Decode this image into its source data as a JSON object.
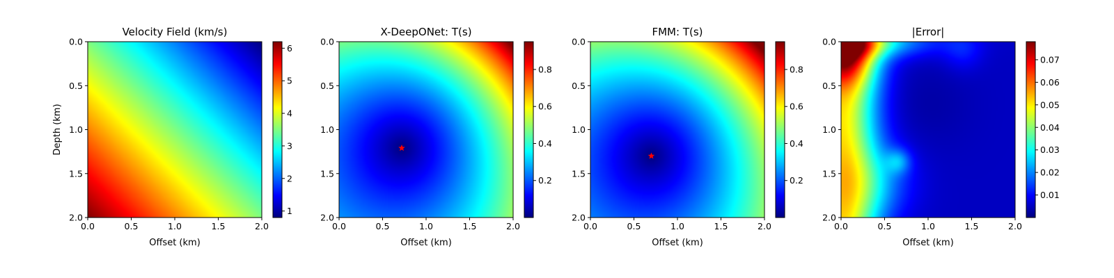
{
  "chart_data": [
    {
      "type": "heatmap",
      "title": "Velocity Field (km/s)",
      "xlabel": "Offset (km)",
      "ylabel": "Depth (km)",
      "xlim": [
        0.0,
        2.0
      ],
      "ylim": [
        2.0,
        0.0
      ],
      "xticks": [
        "0.0",
        "0.5",
        "1.0",
        "1.5",
        "2.0"
      ],
      "yticks": [
        "0.0",
        "0.5",
        "1.0",
        "1.5",
        "2.0"
      ],
      "colormap": "jet",
      "colorbar": {
        "min": 0.8,
        "max": 6.2,
        "ticks": [
          "1",
          "2",
          "3",
          "4",
          "5",
          "6"
        ]
      },
      "field": "velocity increasing linearly toward bottom-left",
      "values": {
        "top_right": 0.8,
        "top_left": 3.0,
        "center": 3.0,
        "bottom_left": 6.2,
        "bottom_right": 3.0
      }
    },
    {
      "type": "heatmap",
      "title": "X-DeepONet: T(s)",
      "xlabel": "Offset (km)",
      "ylabel": "",
      "xlim": [
        0.0,
        2.0
      ],
      "ylim": [
        2.0,
        0.0
      ],
      "xticks": [
        "0.0",
        "0.5",
        "1.0",
        "1.5",
        "2.0"
      ],
      "yticks": [
        "0.0",
        "0.5",
        "1.0",
        "1.5",
        "2.0"
      ],
      "colormap": "jet",
      "colorbar": {
        "min": 0.0,
        "max": 0.95,
        "ticks": [
          "0.2",
          "0.4",
          "0.6",
          "0.8"
        ]
      },
      "source": {
        "x": 0.72,
        "y": 1.21
      },
      "values": {
        "at_source": 0.0,
        "top_right": 0.95
      }
    },
    {
      "type": "heatmap",
      "title": "FMM: T(s)",
      "xlabel": "Offset (km)",
      "ylabel": "",
      "xlim": [
        0.0,
        2.0
      ],
      "ylim": [
        2.0,
        0.0
      ],
      "xticks": [
        "0.0",
        "0.5",
        "1.0",
        "1.5",
        "2.0"
      ],
      "yticks": [
        "0.0",
        "0.5",
        "1.0",
        "1.5",
        "2.0"
      ],
      "colormap": "jet",
      "colorbar": {
        "min": 0.0,
        "max": 0.95,
        "ticks": [
          "0.2",
          "0.4",
          "0.6",
          "0.8"
        ]
      },
      "source": {
        "x": 0.7,
        "y": 1.3
      },
      "values": {
        "at_source": 0.0,
        "top_right": 0.95
      }
    },
    {
      "type": "heatmap",
      "title": "|Error|",
      "xlabel": "Offset (km)",
      "ylabel": "",
      "xlim": [
        0.0,
        2.0
      ],
      "ylim": [
        2.0,
        0.0
      ],
      "xticks": [
        "0.0",
        "0.5",
        "1.0",
        "1.5",
        "2.0"
      ],
      "yticks": [
        "0.0",
        "0.5",
        "1.0",
        "1.5",
        "2.0"
      ],
      "colormap": "jet",
      "colorbar": {
        "min": 0.0,
        "max": 0.078,
        "ticks": [
          "0.01",
          "0.02",
          "0.03",
          "0.04",
          "0.05",
          "0.06",
          "0.07"
        ]
      },
      "values": {
        "top_left": 0.078,
        "left_edge": 0.05,
        "right_half": 0.005
      }
    }
  ],
  "colors": {
    "source_marker": "#ff0000",
    "axes": "#000000",
    "background": "#ffffff"
  }
}
